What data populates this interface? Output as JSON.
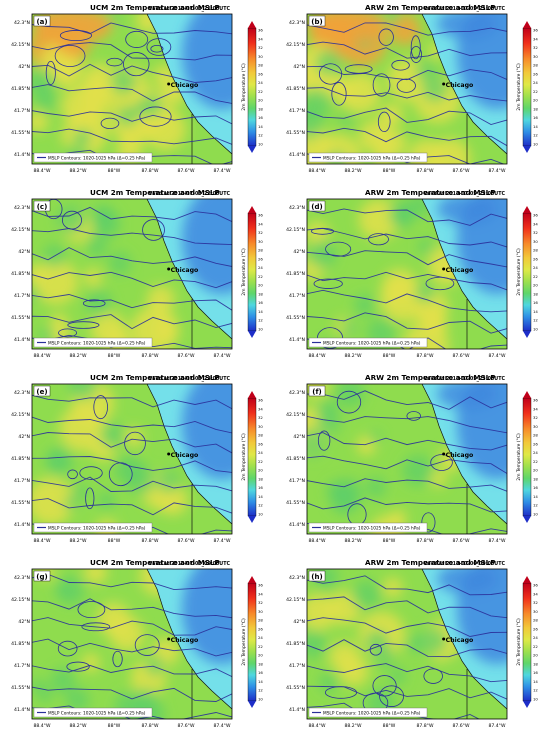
{
  "chart_data": {
    "type": "heatmap",
    "panels": [
      {
        "label": "(a)",
        "title": "UCM 2m Temperature and MSLP",
        "valid": "Valid at 2018-07-05_21:00UTC",
        "legend": "MSLP Contours: 1020-1025 hPa (Δ=0.25 hPa)",
        "city": "Chicago"
      },
      {
        "label": "(b)",
        "title": "ARW 2m Temperature and MSLP",
        "valid": "Valid at 2018-07-05_21:00UTC",
        "legend": "MSLP Contours: 1020-1025 hPa (Δ=0.25 hPa)",
        "city": "Chicago"
      },
      {
        "label": "(c)",
        "title": "UCM 2m Temperature and MSLP",
        "valid": "Valid at 2018-07-05_22:00UTC",
        "legend": "MSLP Contours: 1020-1025 hPa (Δ=0.25 hPa)",
        "city": "Chicago"
      },
      {
        "label": "(d)",
        "title": "ARW 2m Temperature and MSLP",
        "valid": "Valid at 2018-07-05_22:00UTC",
        "legend": "MSLP Contours: 1020-1025 hPa (Δ=0.25 hPa)",
        "city": "Chicago"
      },
      {
        "label": "(e)",
        "title": "UCM 2m Temperature and MSLP",
        "valid": "Valid at 2018-07-05_23:00UTC",
        "legend": "MSLP Contours: 1020-1025 hPa (Δ=0.25 hPa)",
        "city": "Chicago"
      },
      {
        "label": "(f)",
        "title": "ARW 2m Temperature and MSLP",
        "valid": "Valid at 2018-07-05_23:00UTC",
        "legend": "MSLP Contours: 1020-1025 hPa (Δ=0.25 hPa)",
        "city": "Chicago"
      },
      {
        "label": "(g)",
        "title": "UCM 2m Temperature and MSLP",
        "valid": "Valid at 2018-07-06_00:00UTC",
        "legend": "MSLP Contours: 1020-1025 hPa (Δ=0.25 hPa)",
        "city": "Chicago"
      },
      {
        "label": "(h)",
        "title": "ARW 2m Temperature and MSLP",
        "valid": "Valid at 2018-07-06_00:00UTC",
        "legend": "MSLP Contours: 1020-1025 hPa (Δ=0.25 hPa)",
        "city": "Chicago"
      }
    ],
    "lat_ticks": [
      "42.3°N",
      "42.15°N",
      "42°N",
      "41.85°N",
      "41.7°N",
      "41.55°N",
      "41.4°N"
    ],
    "lon_ticks": [
      "88.4°W",
      "88.2°W",
      "88°W",
      "87.8°W",
      "87.6°W",
      "87.4°W"
    ],
    "lon_range": [
      -88.45,
      -87.25
    ],
    "lat_range": [
      41.32,
      42.37
    ],
    "city_position": {
      "lon": -87.63,
      "lat": 41.88
    },
    "colorbar": {
      "label": "2m Temperature (°C)",
      "ticks": [
        36,
        34,
        32,
        30,
        28,
        26,
        24,
        22,
        20,
        18,
        16,
        14,
        12,
        10
      ]
    },
    "colors": {
      "warm": "#f2a23a",
      "yellow": "#e3e14a",
      "green": "#8fdc4e",
      "cyan": "#74e0ea",
      "blue": "#3f87df",
      "contour": "#2a2f9a",
      "border": "#111111"
    }
  }
}
